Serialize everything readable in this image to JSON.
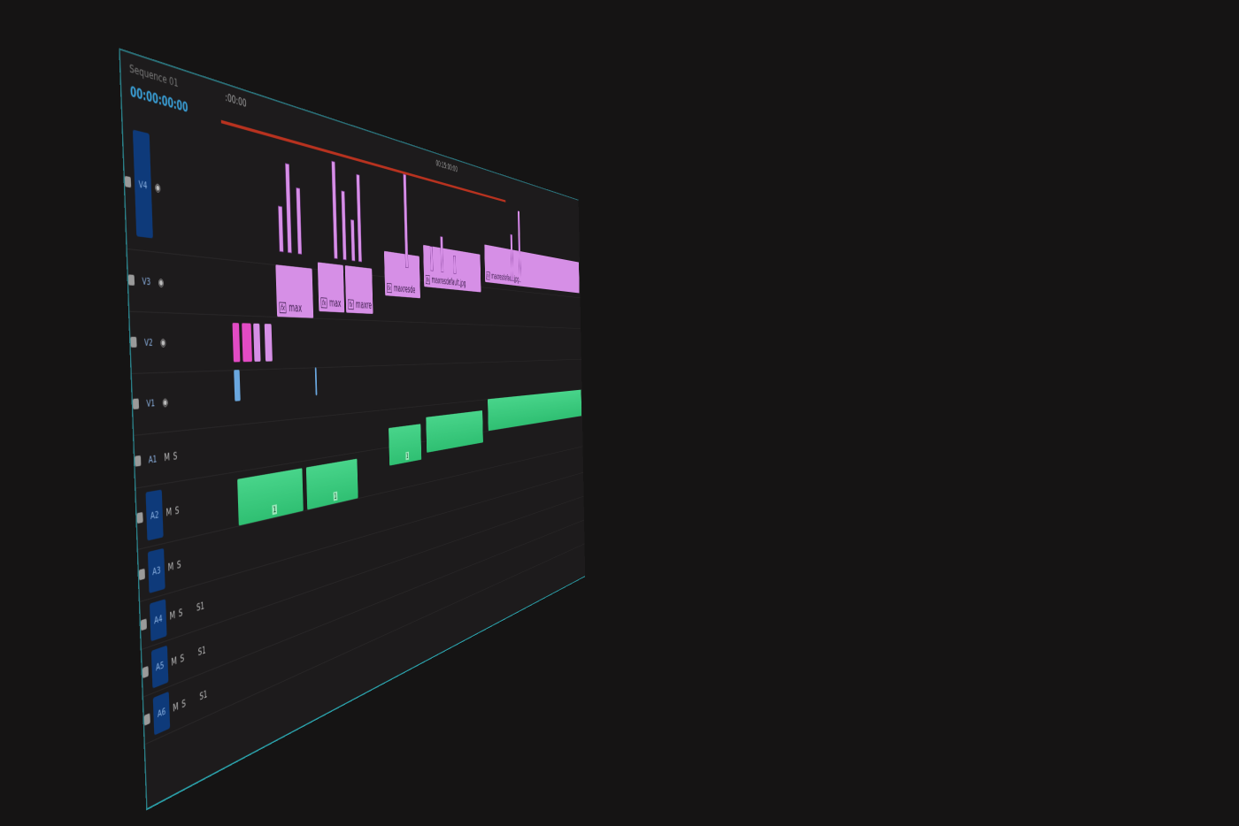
{
  "sequence": {
    "name": "Sequence 01",
    "timecode": "00:00:00:00"
  },
  "ruler": {
    "labels": [
      ":00:00",
      "00:15:00:00"
    ]
  },
  "tracks": {
    "video": [
      {
        "name": "V4"
      },
      {
        "name": "V3"
      },
      {
        "name": "V2"
      },
      {
        "name": "V1"
      }
    ],
    "audio": [
      {
        "name": "A1",
        "m": "M",
        "s": "S"
      },
      {
        "name": "A2",
        "m": "M",
        "s": "S"
      },
      {
        "name": "A3",
        "m": "M",
        "s": "S"
      },
      {
        "name": "A4",
        "m": "M",
        "s": "S",
        "extra": "S1"
      },
      {
        "name": "A5",
        "m": "M",
        "s": "S",
        "extra": "S1"
      },
      {
        "name": "A6",
        "m": "M",
        "s": "S",
        "extra": "S1"
      }
    ]
  },
  "clips": {
    "fx_badge": "fx",
    "labels": [
      "max",
      "max",
      "maxre",
      "maxresde",
      "maxresdefault.jpg",
      "maxresdefault.jpg"
    ],
    "audio_channel": "1"
  },
  "colors": {
    "video_clip": "#d68fe6",
    "audio_clip": "#3ccf80",
    "playhead_bar": "#b8321f",
    "selected_track": "#0e3a7a",
    "accent": "#2a9fa8"
  }
}
